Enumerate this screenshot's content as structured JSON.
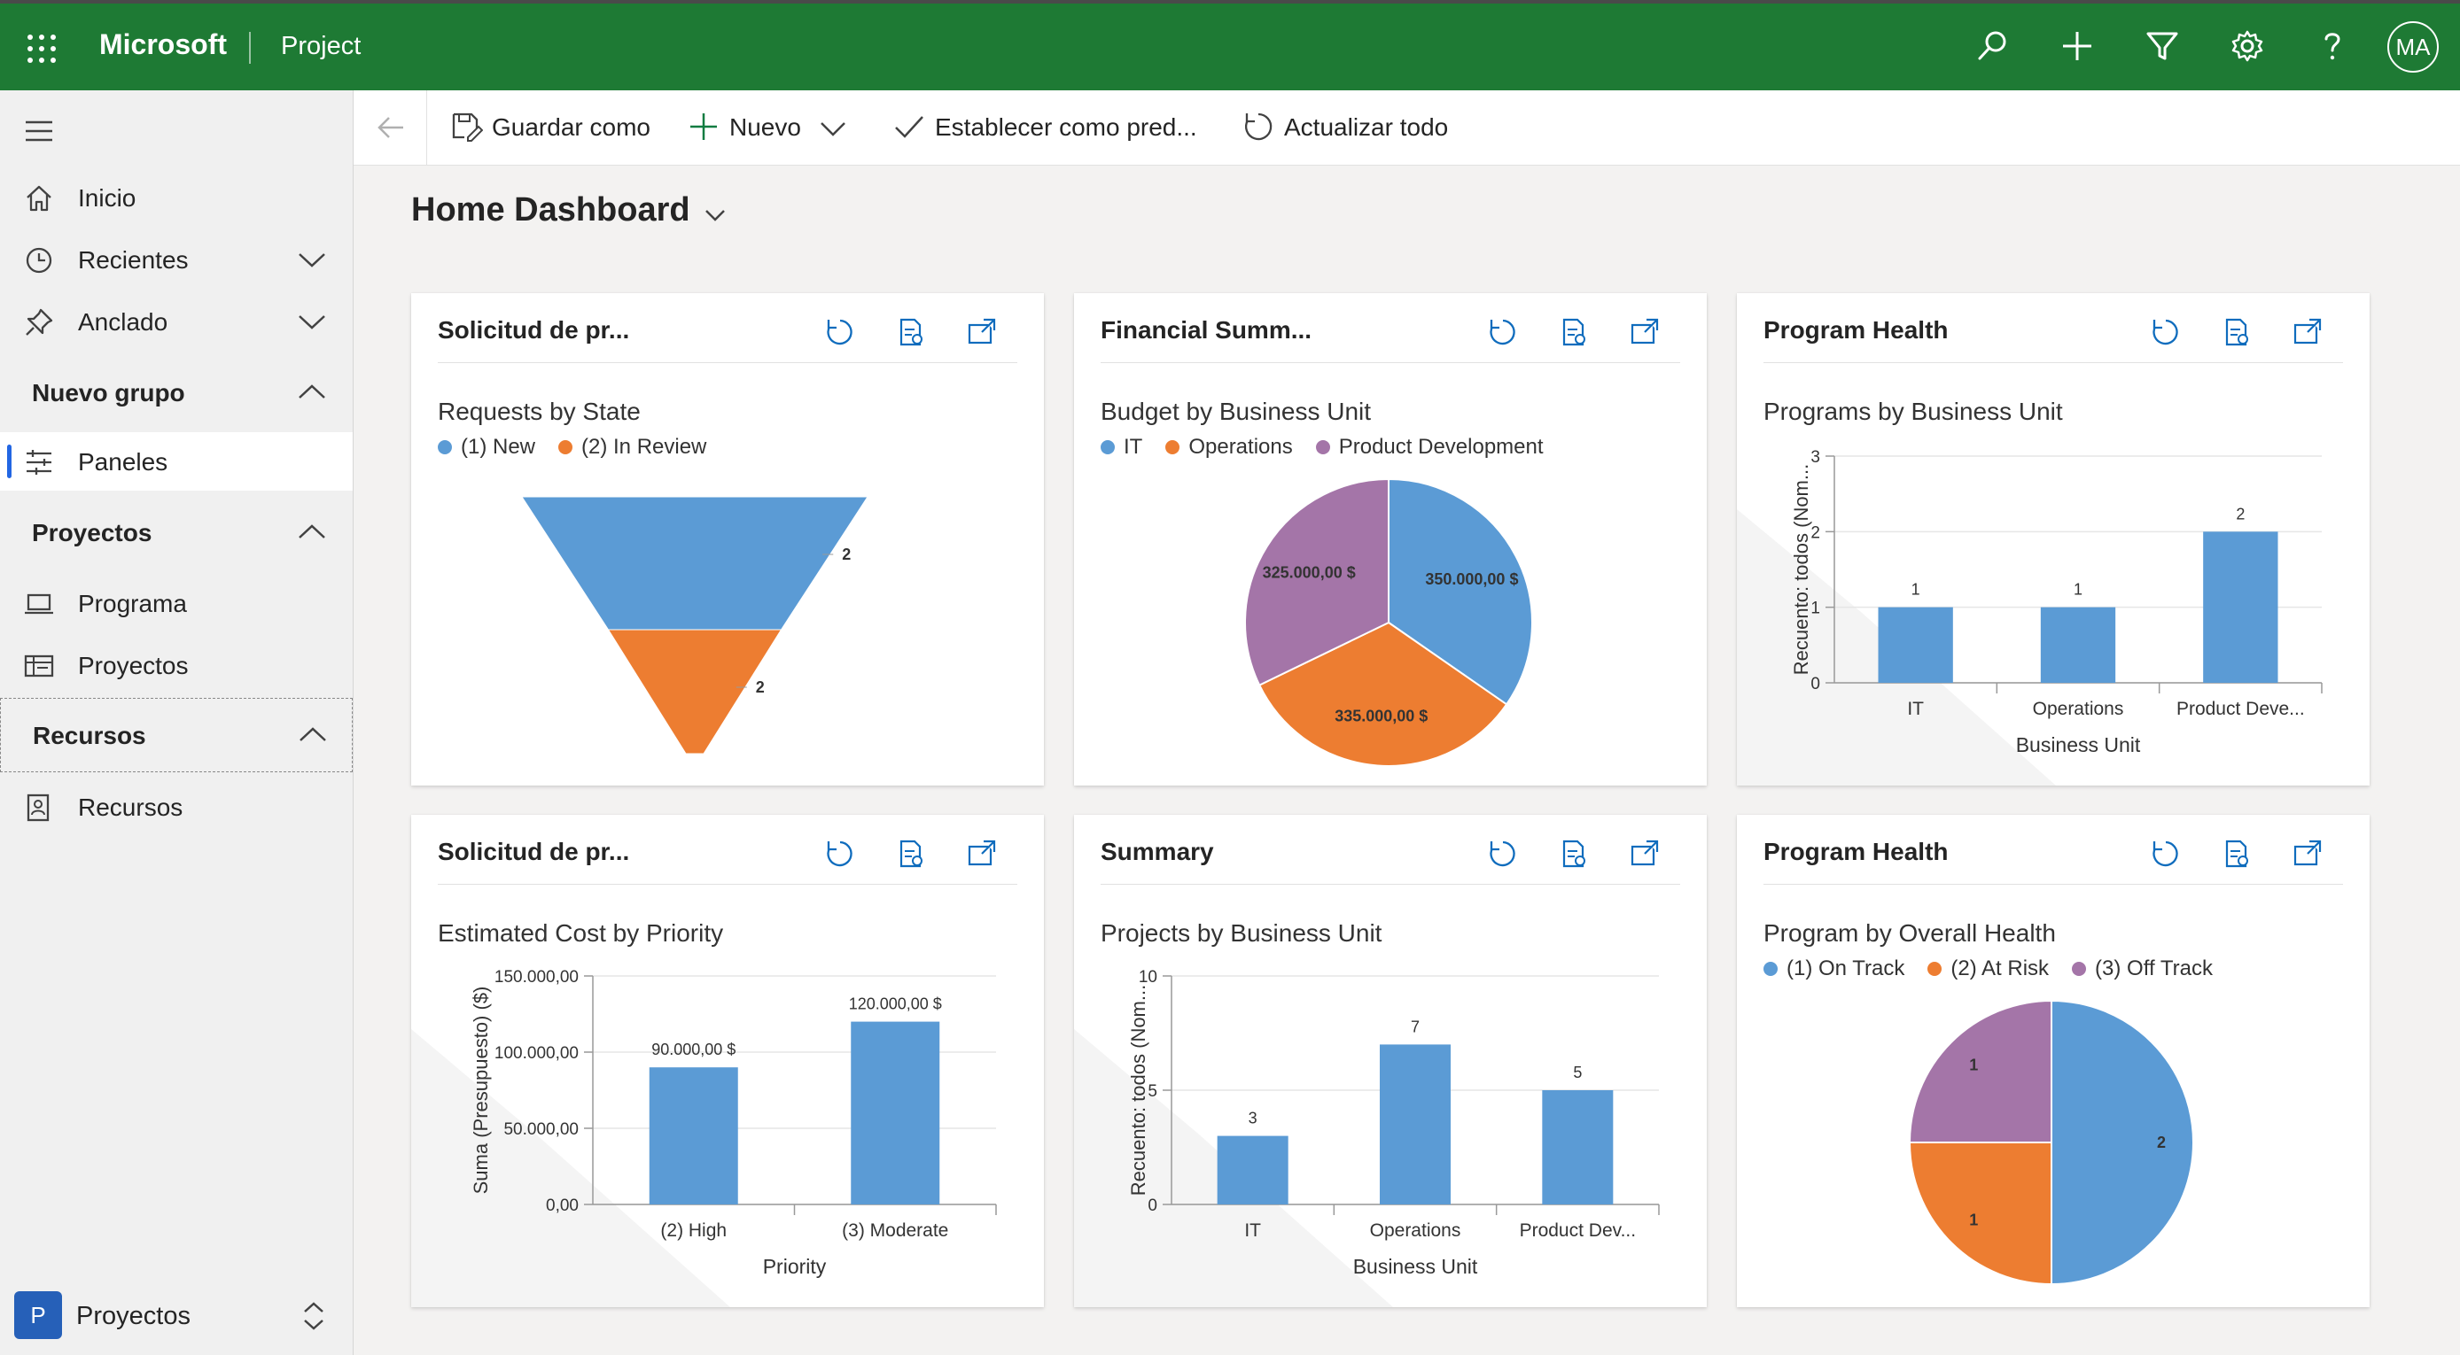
{
  "topbar": {
    "brand": "Microsoft",
    "app": "Project",
    "avatar": "MA"
  },
  "command_bar": {
    "save_as": "Guardar como",
    "new": "Nuevo",
    "set_default": "Establecer como pred...",
    "refresh_all": "Actualizar todo"
  },
  "sidebar": {
    "home": "Inicio",
    "recent": "Recientes",
    "pinned": "Anclado",
    "group1": "Nuevo grupo",
    "dashboards": "Paneles",
    "group2": "Proyectos",
    "program": "Programa",
    "projects": "Proyectos",
    "group3": "Recursos",
    "resources": "Recursos",
    "area_badge": "P",
    "area_label": "Proyectos"
  },
  "dashboard": {
    "title": "Home Dashboard"
  },
  "colors": {
    "blue": "#5b9bd5",
    "orange": "#ed7d31",
    "purple": "#a475a8",
    "brand_green": "#1e7a34",
    "accent": "#0f6cbd"
  },
  "cards": [
    {
      "title": "Solicitud de pr...",
      "subtitle": "Requests by State"
    },
    {
      "title": "Financial Summ...",
      "subtitle": "Budget by Business Unit"
    },
    {
      "title": "Program Health",
      "subtitle": "Programs by Business Unit"
    },
    {
      "title": "Solicitud de pr...",
      "subtitle": "Estimated Cost by Priority"
    },
    {
      "title": "Summary",
      "subtitle": "Projects by Business Unit"
    },
    {
      "title": "Program Health",
      "subtitle": "Program by Overall Health"
    }
  ],
  "chart_data": [
    {
      "type": "funnel",
      "title": "Requests by State",
      "categories": [
        "(1) New",
        "(2) In Review"
      ],
      "values": [
        2,
        2
      ],
      "colors": [
        "#5b9bd5",
        "#ed7d31"
      ],
      "legend": "top-left"
    },
    {
      "type": "pie",
      "title": "Budget by Business Unit",
      "categories": [
        "IT",
        "Operations",
        "Product Development"
      ],
      "values": [
        350000,
        335000,
        325000
      ],
      "labels": [
        "350.000,00 $",
        "335.000,00 $",
        "325.000,00 $"
      ],
      "colors": [
        "#5b9bd5",
        "#ed7d31",
        "#a475a8"
      ],
      "legend": "top-left"
    },
    {
      "type": "bar",
      "title": "Programs by Business Unit",
      "categories": [
        "IT",
        "Operations",
        "Product Deve..."
      ],
      "values": [
        1,
        1,
        2
      ],
      "xlabel": "Business Unit",
      "ylabel": "Recuento: todos (Nom...",
      "ylim": [
        0,
        3
      ],
      "yticks": [
        "0",
        "1",
        "2",
        "3"
      ],
      "value_labels": [
        "1",
        "1",
        "2"
      ],
      "color": "#5b9bd5",
      "grid": true
    },
    {
      "type": "bar",
      "title": "Estimated Cost by Priority",
      "categories": [
        "(2) High",
        "(3) Moderate"
      ],
      "values": [
        90000,
        120000
      ],
      "xlabel": "Priority",
      "ylabel": "Suma (Presupuesto) ($)",
      "ylim": [
        0,
        150000
      ],
      "yticks": [
        "0,00",
        "50.000,00",
        "100.000,00",
        "150.000,00"
      ],
      "value_labels": [
        "90.000,00 $",
        "120.000,00 $"
      ],
      "color": "#5b9bd5",
      "grid": true
    },
    {
      "type": "bar",
      "title": "Projects by Business Unit",
      "categories": [
        "IT",
        "Operations",
        "Product Dev..."
      ],
      "values": [
        3,
        7,
        5
      ],
      "xlabel": "Business Unit",
      "ylabel": "Recuento: todos (Nom...",
      "ylim": [
        0,
        10
      ],
      "yticks": [
        "0",
        "5",
        "10"
      ],
      "value_labels": [
        "3",
        "7",
        "5"
      ],
      "color": "#5b9bd5",
      "grid": true
    },
    {
      "type": "pie",
      "title": "Program by Overall Health",
      "categories": [
        "(1) On Track",
        "(2) At Risk",
        "(3) Off Track"
      ],
      "values": [
        2,
        1,
        1
      ],
      "labels": [
        "2",
        "1",
        "1"
      ],
      "colors": [
        "#5b9bd5",
        "#ed7d31",
        "#a475a8"
      ],
      "legend": "top-left"
    }
  ]
}
